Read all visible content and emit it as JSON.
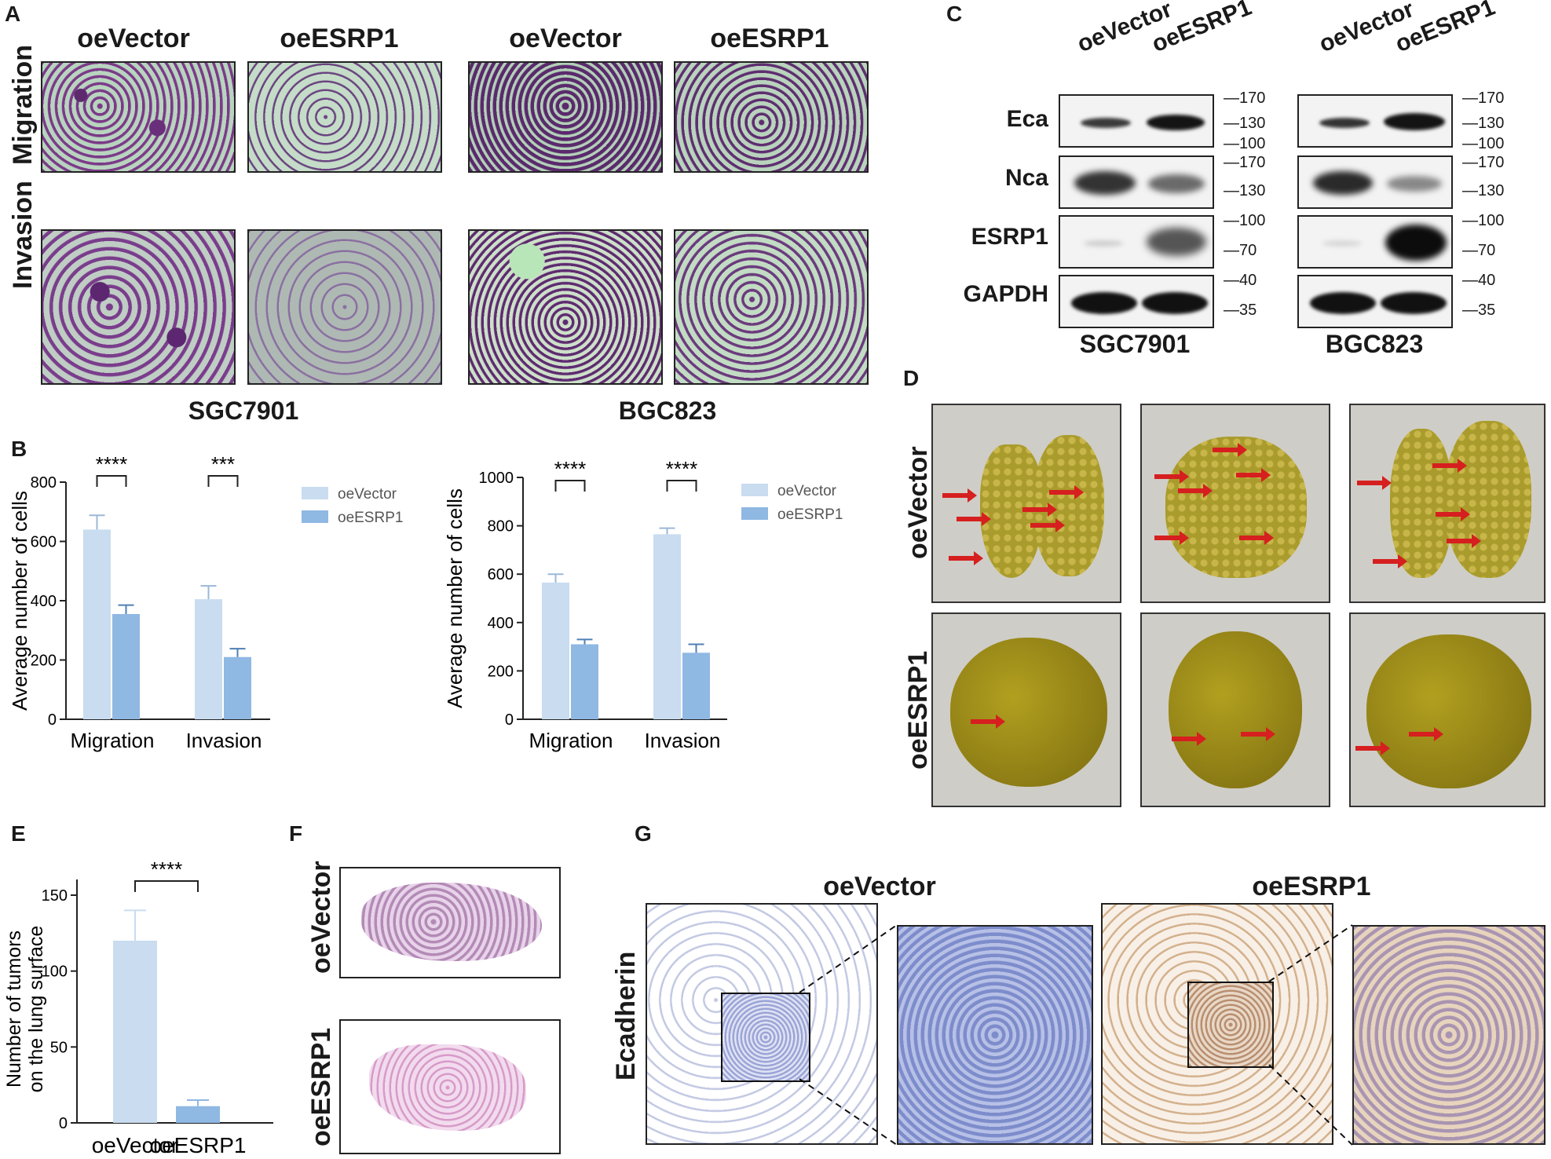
{
  "panels": {
    "A": "A",
    "B": "B",
    "C": "C",
    "D": "D",
    "E": "E",
    "F": "F",
    "G": "G"
  },
  "panelA": {
    "col_headers": [
      "oeVector",
      "oeESRP1",
      "oeVector",
      "oeESRP1"
    ],
    "row_labels": [
      "Migration",
      "Invasion"
    ],
    "cell_lines": [
      "SGC7901",
      "BGC823"
    ]
  },
  "panelC": {
    "lane_labels": [
      "oeVector",
      "oeESRP1"
    ],
    "proteins": [
      "Eca",
      "Nca",
      "ESRP1",
      "GAPDH"
    ],
    "mw_markers": [
      [
        "170",
        "130",
        "100"
      ],
      [
        "170",
        "130"
      ],
      [
        "100",
        "70"
      ],
      [
        "40",
        "35"
      ]
    ],
    "cell_lines": [
      "SGC7901",
      "BGC823"
    ]
  },
  "panelD": {
    "row_labels": [
      "oeVector",
      "oeESRP1"
    ]
  },
  "panelF": {
    "row_labels": [
      "oeVector",
      "oeESRP1"
    ]
  },
  "panelG": {
    "col_headers": [
      "oeVector",
      "oeESRP1"
    ],
    "row_label": "Ecadherin"
  },
  "chart_data": [
    {
      "type": "bar",
      "panel": "B-left",
      "categories": [
        "Migration",
        "Invasion"
      ],
      "series": [
        {
          "name": "oeVector",
          "values": [
            640,
            405
          ],
          "errors": [
            48,
            45
          ],
          "color": "#c9dcf0"
        },
        {
          "name": "oeESRP1",
          "values": [
            355,
            210
          ],
          "errors": [
            30,
            28
          ],
          "color": "#8fb8e3"
        }
      ],
      "significance": [
        "****",
        "***"
      ],
      "ylabel": "Average number of cells",
      "ylim": [
        0,
        800
      ],
      "yticks": [
        0,
        200,
        400,
        600,
        800
      ],
      "legend": "right"
    },
    {
      "type": "bar",
      "panel": "B-right",
      "categories": [
        "Migration",
        "Invasion"
      ],
      "series": [
        {
          "name": "oeVector",
          "values": [
            565,
            765
          ],
          "errors": [
            35,
            25
          ],
          "color": "#c9dcf0"
        },
        {
          "name": "oeESRP1",
          "values": [
            310,
            275
          ],
          "errors": [
            20,
            35
          ],
          "color": "#8fb8e3"
        }
      ],
      "significance": [
        "****",
        "****"
      ],
      "ylabel": "Average number of cells",
      "ylim": [
        0,
        1000
      ],
      "yticks": [
        0,
        200,
        400,
        600,
        800,
        1000
      ],
      "legend": "right"
    },
    {
      "type": "bar",
      "panel": "E",
      "categories": [
        "oeVector",
        "oeESRP1"
      ],
      "series": [
        {
          "name": "",
          "values": [
            120,
            11
          ],
          "errors": [
            20,
            4
          ],
          "colors": [
            "#c9dcf0",
            "#8fb8e3"
          ]
        }
      ],
      "significance": [
        "****"
      ],
      "ylabel": "Number of tumors on the lung surface",
      "ylabel_lines": [
        "Number of tumors",
        "on the lung surface"
      ],
      "ylim": [
        0,
        150
      ],
      "yticks": [
        0,
        50,
        100,
        150
      ]
    }
  ]
}
